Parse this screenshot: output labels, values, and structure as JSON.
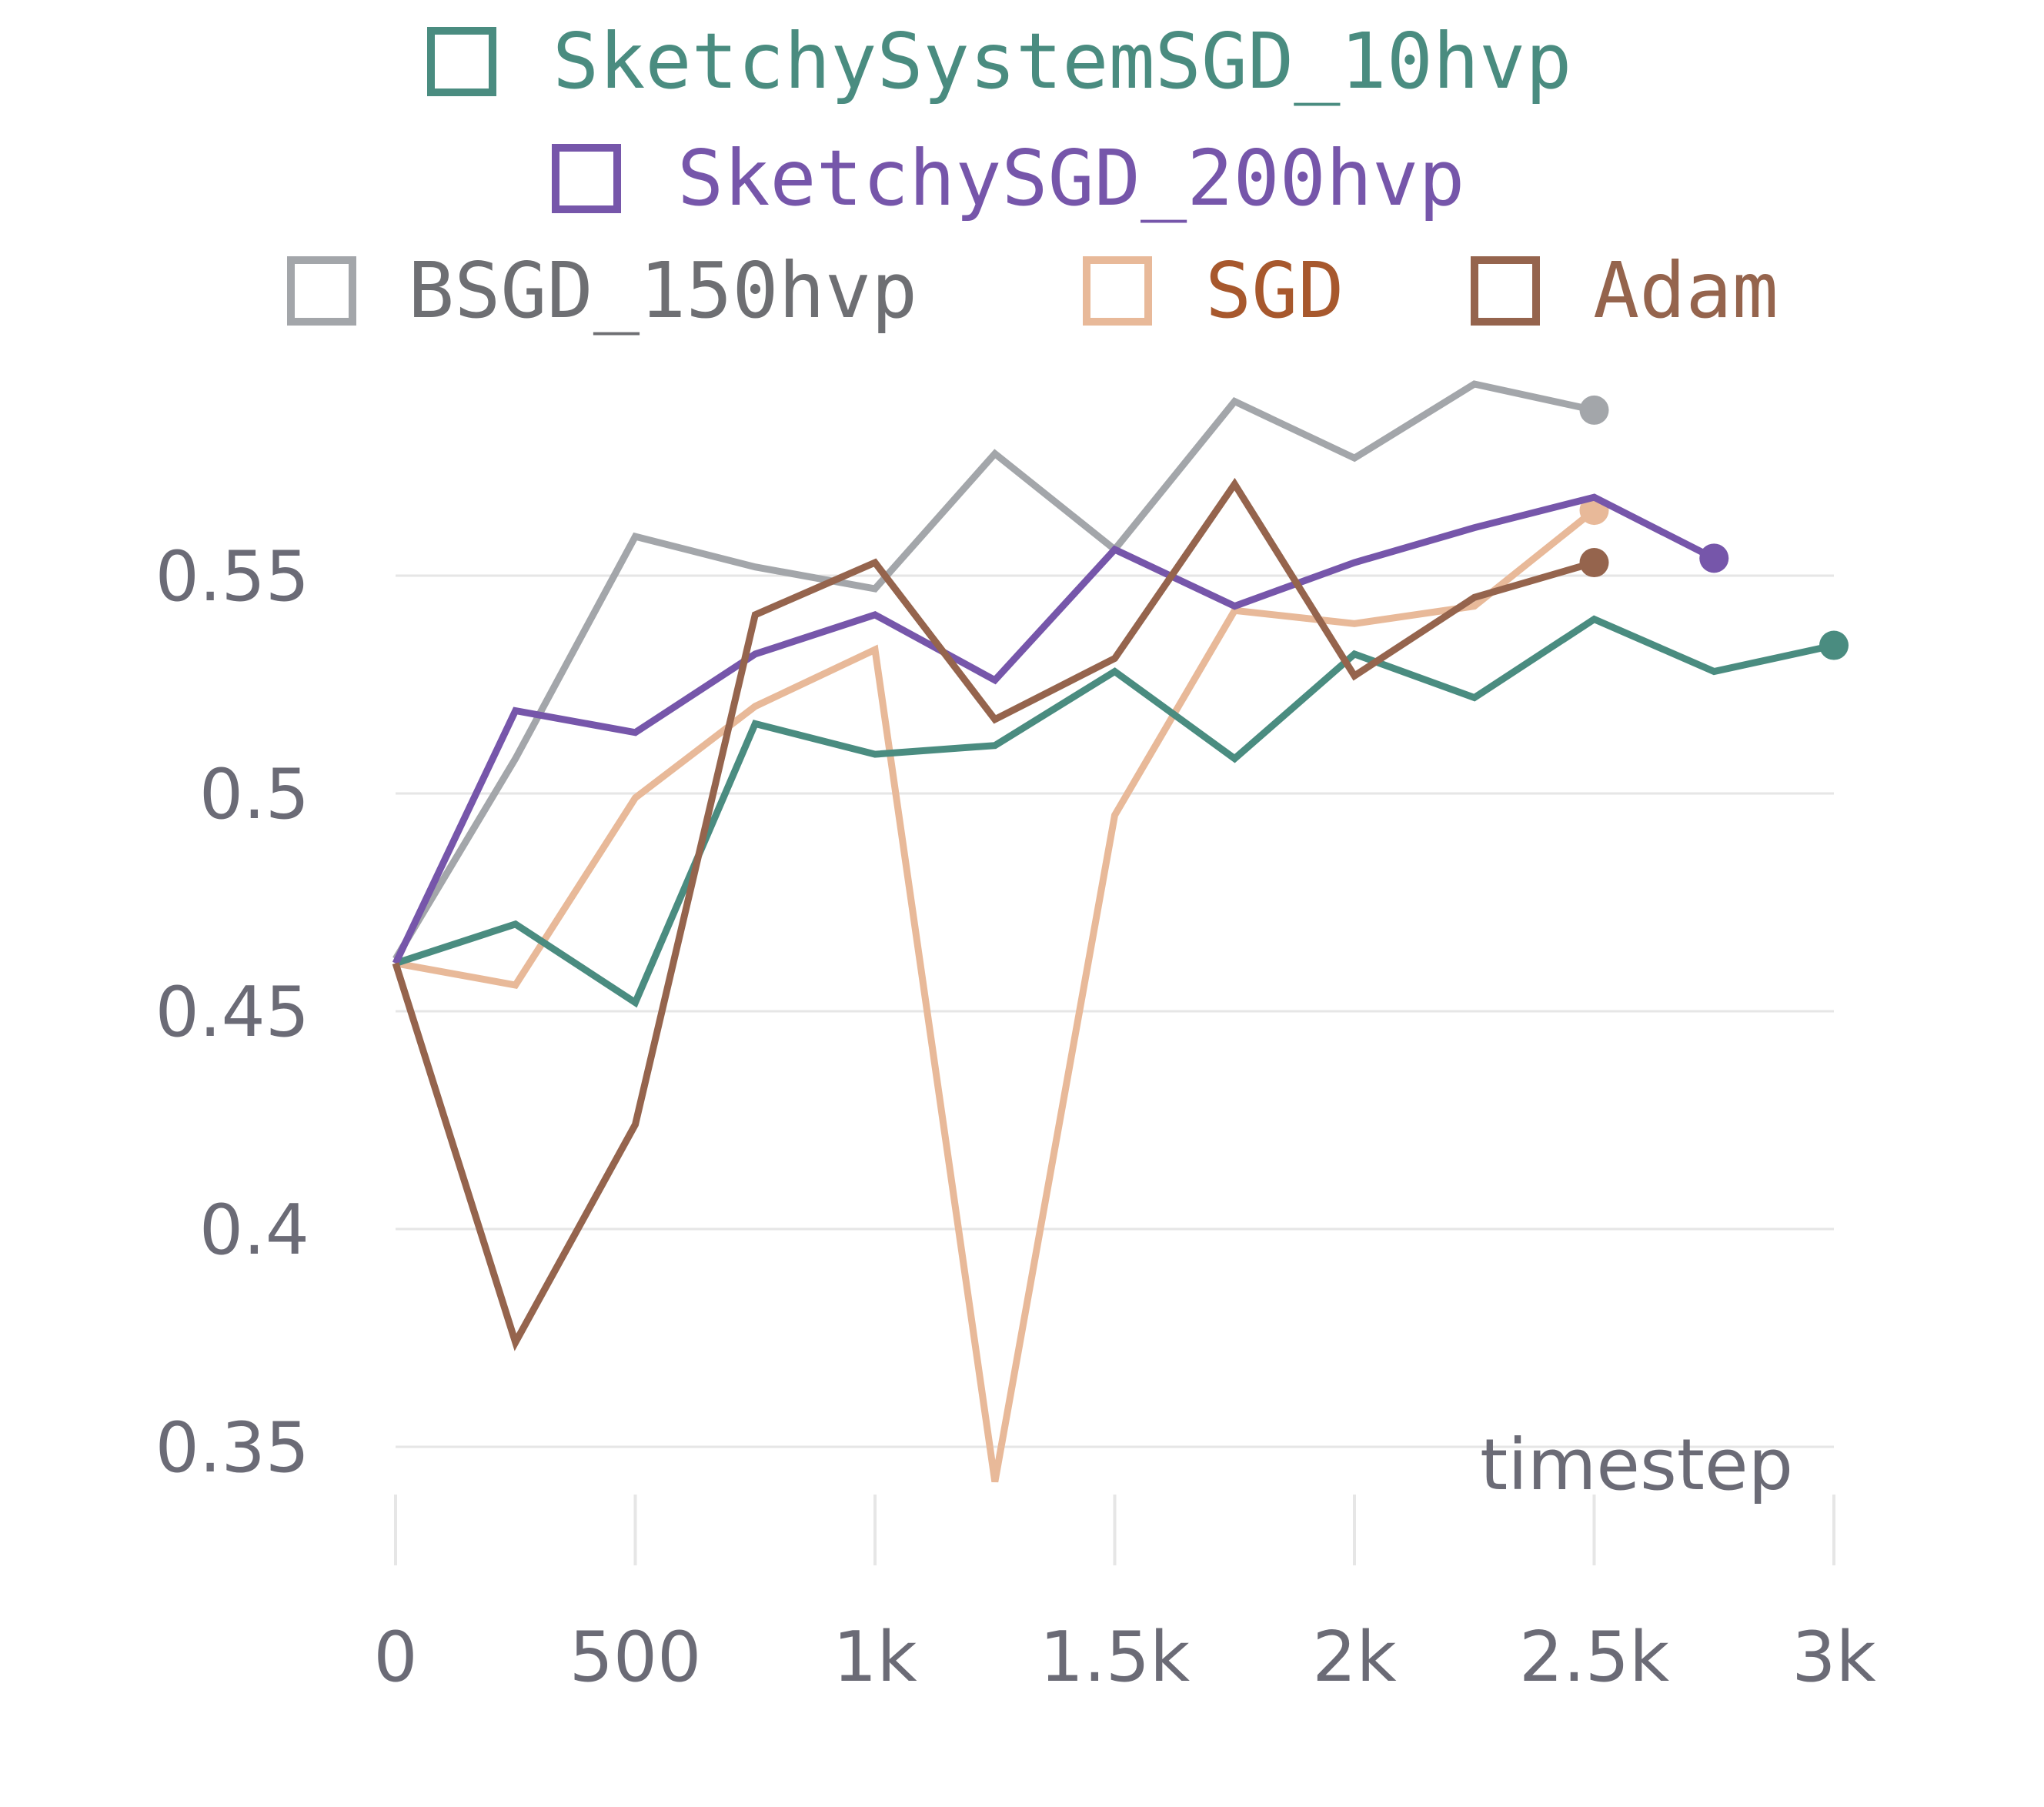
{
  "chart_data": {
    "type": "line",
    "title": "",
    "xlabel": "timestep",
    "ylabel": "",
    "xlim": [
      0,
      3000
    ],
    "ylim": [
      0.34,
      0.6
    ],
    "grid": true,
    "legend_placement": "top-center",
    "x_ticks": [
      {
        "value": 0,
        "label": "0"
      },
      {
        "value": 500,
        "label": "500"
      },
      {
        "value": 1000,
        "label": "1k"
      },
      {
        "value": 1500,
        "label": "1.5k"
      },
      {
        "value": 2000,
        "label": "2k"
      },
      {
        "value": 2500,
        "label": "2.5k"
      },
      {
        "value": 3000,
        "label": "3k"
      }
    ],
    "y_ticks": [
      {
        "value": 0.35,
        "label": "0.35"
      },
      {
        "value": 0.4,
        "label": "0.4"
      },
      {
        "value": 0.45,
        "label": "0.45"
      },
      {
        "value": 0.5,
        "label": "0.5"
      },
      {
        "value": 0.55,
        "label": "0.55"
      }
    ],
    "series": [
      {
        "name": "SketchySystemSGD_10hvp",
        "color": "#4a8c80",
        "text_color": "#4a8c80",
        "x": [
          0,
          250,
          500,
          750,
          1000,
          1250,
          1500,
          1750,
          2000,
          2250,
          2500,
          2750,
          3000
        ],
        "y": [
          0.461,
          0.47,
          0.452,
          0.516,
          0.509,
          0.511,
          0.528,
          0.508,
          0.532,
          0.522,
          0.54,
          0.528,
          0.534
        ]
      },
      {
        "name": "SketchySGD_200hvp",
        "color": "#7656aa",
        "text_color": "#7656aa",
        "x": [
          0,
          250,
          500,
          750,
          1000,
          1250,
          1500,
          1750,
          2000,
          2250,
          2500,
          2750
        ],
        "y": [
          0.461,
          0.519,
          0.514,
          0.532,
          0.541,
          0.526,
          0.556,
          0.543,
          0.553,
          0.561,
          0.568,
          0.554
        ]
      },
      {
        "name": "BSGD_150hvp",
        "color": "#a3a6aa",
        "text_color": "#6e6f73",
        "x": [
          0,
          250,
          500,
          750,
          1000,
          1250,
          1500,
          1750,
          2000,
          2250,
          2500
        ],
        "y": [
          0.462,
          0.508,
          0.559,
          0.552,
          0.547,
          0.578,
          0.556,
          0.59,
          0.577,
          0.594,
          0.588
        ]
      },
      {
        "name": "SGD",
        "color": "#e8b999",
        "text_color": "#a7582d",
        "x": [
          0,
          250,
          500,
          750,
          1000,
          1250,
          1500,
          1750,
          2000,
          2250,
          2500
        ],
        "y": [
          0.461,
          0.456,
          0.499,
          0.52,
          0.533,
          0.342,
          0.495,
          0.542,
          0.539,
          0.543,
          0.565
        ]
      },
      {
        "name": "Adam",
        "color": "#95644d",
        "text_color": "#95644d",
        "x": [
          0,
          250,
          500,
          750,
          1000,
          1250,
          1500,
          1750,
          2000,
          2250,
          2500
        ],
        "y": [
          0.461,
          0.374,
          0.424,
          0.541,
          0.553,
          0.517,
          0.531,
          0.571,
          0.527,
          0.545,
          0.553
        ]
      }
    ]
  }
}
